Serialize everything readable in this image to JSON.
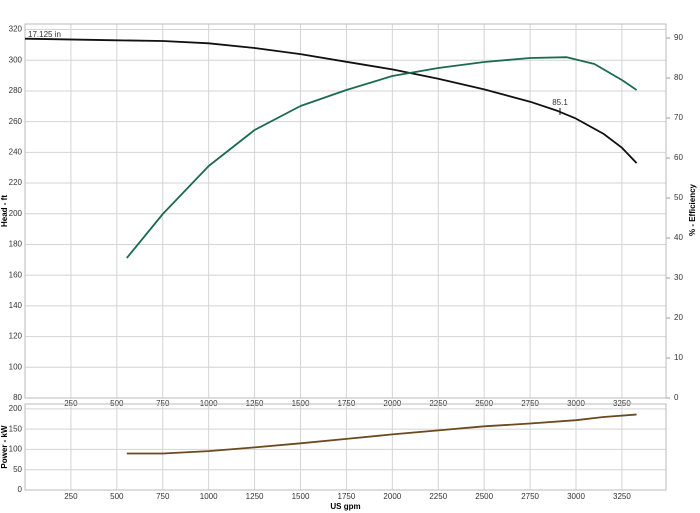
{
  "chart_data": [
    {
      "type": "line",
      "ylabel": "Head - ft",
      "y2label": "% - Efficiency",
      "annotations": [
        "17.125 in",
        "85.1"
      ],
      "xlim": [
        0,
        3490
      ],
      "xticks": [
        250,
        500,
        750,
        1000,
        1250,
        1500,
        1750,
        2000,
        2250,
        2500,
        2750,
        3000,
        3250
      ],
      "ylim": [
        80,
        323.6
      ],
      "yticks": [
        80,
        100,
        120,
        140,
        160,
        180,
        200,
        220,
        240,
        260,
        280,
        300,
        320
      ],
      "y2lim": [
        0,
        93.5
      ],
      "y2ticks": [
        0,
        10,
        20,
        30,
        40,
        50,
        60,
        70,
        80,
        90
      ],
      "grid": true,
      "series": [
        {
          "color": "#111111",
          "x": [
            0,
            500,
            750,
            1000,
            1250,
            1500,
            1750,
            2000,
            2250,
            2500,
            2750,
            2900,
            3000,
            3150,
            3250,
            3330
          ],
          "values": [
            314,
            313,
            312.5,
            311,
            308,
            304,
            299,
            294,
            288,
            281,
            273,
            267,
            262,
            252,
            243,
            233
          ]
        },
        {
          "color": "#1a6b50",
          "axis": "y2",
          "x": [
            554,
            750,
            1000,
            1250,
            1500,
            1750,
            2000,
            2250,
            2500,
            2750,
            2950,
            3100,
            3250,
            3330
          ],
          "values": [
            35,
            46,
            58,
            67,
            73,
            77,
            80.5,
            82.5,
            84,
            85,
            85.2,
            83.5,
            79.5,
            77
          ]
        }
      ]
    },
    {
      "type": "line",
      "xlabel": "US gpm",
      "ylabel": "Power - kW",
      "xlim": [
        0,
        3490
      ],
      "xticks": [
        250,
        500,
        750,
        1000,
        1250,
        1500,
        1750,
        2000,
        2250,
        2500,
        2750,
        3000,
        3250
      ],
      "ylim": [
        0,
        212
      ],
      "yticks": [
        0,
        50,
        100,
        150,
        200
      ],
      "grid": true,
      "series": [
        {
          "color": "#6b4a1e",
          "x": [
            554,
            750,
            1000,
            1250,
            1500,
            1750,
            2000,
            2250,
            2500,
            2750,
            3000,
            3150,
            3330
          ],
          "values": [
            90,
            90,
            96,
            105,
            115,
            126,
            137,
            147,
            157,
            164,
            172,
            180,
            186
          ]
        }
      ]
    }
  ]
}
